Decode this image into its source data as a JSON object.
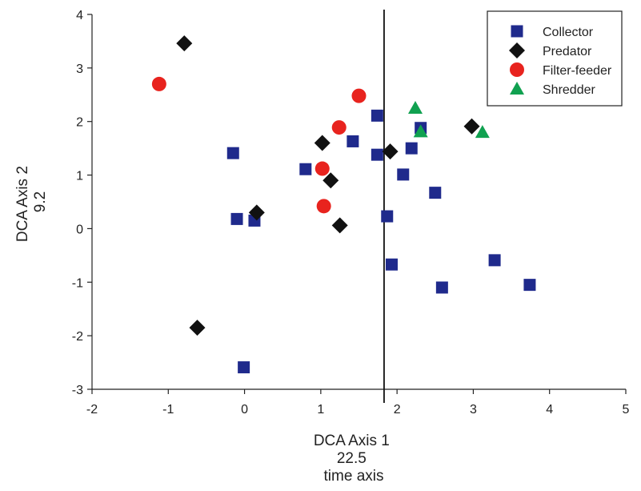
{
  "chart_data": {
    "type": "scatter",
    "title": "",
    "xlabel": [
      "DCA Axis 1",
      "22.5",
      "time axis"
    ],
    "ylabel": [
      "DCA Axis 2",
      "9.2"
    ],
    "xlim": [
      -2,
      5
    ],
    "ylim": [
      -3,
      4
    ],
    "xticks": [
      "-2",
      "-1",
      "0",
      "1",
      "2",
      "3",
      "4",
      "5"
    ],
    "yticks": [
      "-3",
      "-2",
      "-1",
      "0",
      "1",
      "2",
      "3",
      "4"
    ],
    "vertical_line_x": 1.83,
    "grid": false,
    "legend_position": "top-right",
    "series": [
      {
        "name": "Collector",
        "marker": "square",
        "color": "#1f2a8c",
        "points": [
          [
            -0.15,
            1.41
          ],
          [
            -0.1,
            0.18
          ],
          [
            0.13,
            0.15
          ],
          [
            0.8,
            1.11
          ],
          [
            1.42,
            1.63
          ],
          [
            1.74,
            2.11
          ],
          [
            1.74,
            1.38
          ],
          [
            1.87,
            0.23
          ],
          [
            1.93,
            -0.67
          ],
          [
            2.08,
            1.01
          ],
          [
            2.19,
            1.5
          ],
          [
            2.31,
            1.88
          ],
          [
            2.5,
            0.67
          ],
          [
            2.59,
            -1.1
          ],
          [
            3.28,
            -0.59
          ],
          [
            3.74,
            -1.05
          ],
          [
            -0.01,
            -2.59
          ]
        ]
      },
      {
        "name": "Predator",
        "marker": "diamond",
        "color": "#111111",
        "points": [
          [
            -0.79,
            3.46
          ],
          [
            1.02,
            1.6
          ],
          [
            1.13,
            0.9
          ],
          [
            0.16,
            0.3
          ],
          [
            1.25,
            0.06
          ],
          [
            1.91,
            1.44
          ],
          [
            2.98,
            1.91
          ],
          [
            -0.62,
            -1.85
          ]
        ]
      },
      {
        "name": "Filter-feeder",
        "marker": "circle",
        "color": "#e8231e",
        "points": [
          [
            -1.12,
            2.7
          ],
          [
            1.24,
            1.89
          ],
          [
            1.5,
            2.48
          ],
          [
            1.02,
            1.12
          ],
          [
            1.04,
            0.42
          ]
        ]
      },
      {
        "name": "Shredder",
        "marker": "triangle",
        "color": "#10a150",
        "points": [
          [
            2.24,
            2.25
          ],
          [
            2.31,
            1.81
          ],
          [
            3.12,
            1.8
          ]
        ]
      }
    ]
  }
}
